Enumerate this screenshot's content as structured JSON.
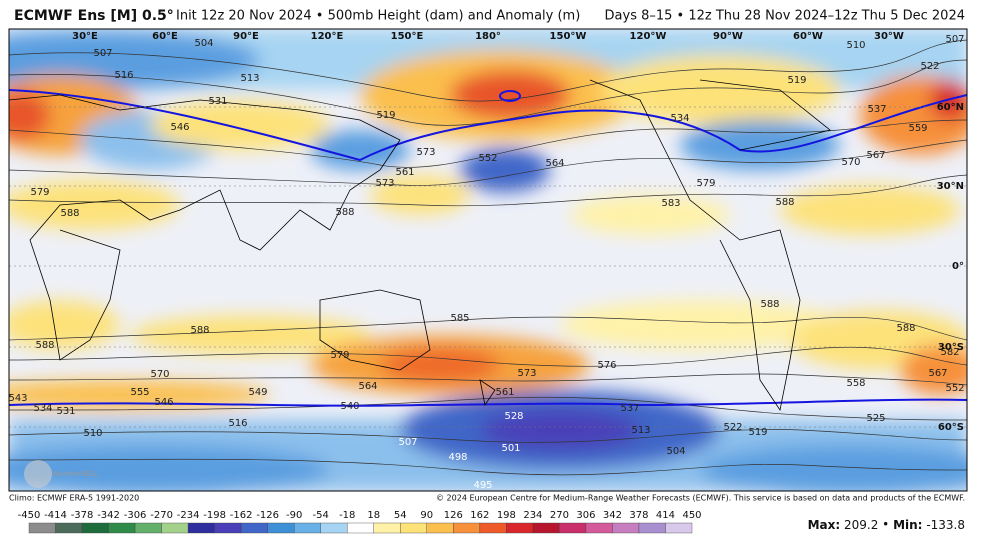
{
  "header": {
    "title": "ECMWF Ens [M] 0.5°",
    "init": "Init 12z 20 Nov 2024 • 500mb Height (dam) and Anomaly (m)",
    "valid": "Days 8–15 • 12z Thu 28 Nov 2024–12z Thu 5 Dec 2024"
  },
  "map": {
    "lon_labels": [
      "30°E",
      "60°E",
      "90°E",
      "120°E",
      "150°E",
      "180°",
      "150°W",
      "120°W",
      "90°W",
      "60°W",
      "30°W"
    ],
    "lat_labels": [
      "60°N",
      "30°N",
      "0°",
      "30°S",
      "60°S"
    ],
    "contour_labels": [
      "507",
      "504",
      "516",
      "513",
      "531",
      "546",
      "519",
      "552",
      "564",
      "573",
      "561",
      "573",
      "579",
      "588",
      "588",
      "585",
      "588",
      "588",
      "579",
      "570",
      "564",
      "555",
      "549",
      "546",
      "543",
      "534",
      "531",
      "516",
      "510",
      "540",
      "561",
      "573",
      "576",
      "528",
      "537",
      "513",
      "507",
      "501",
      "498",
      "495",
      "504",
      "522",
      "519",
      "525",
      "558",
      "567",
      "552",
      "582",
      "588",
      "588",
      "588",
      "570",
      "567",
      "537",
      "519",
      "510",
      "522",
      "507",
      "559",
      "534",
      "579",
      "583"
    ],
    "watermark": "WeatherBELL"
  },
  "footer": {
    "climo": "Climo: ECMWF ERA-5 1991-2020",
    "copyright": "© 2024 European Centre for Medium-Range Weather Forecasts (ECMWF). This service is based on data and products of the ECMWF."
  },
  "colorbar": {
    "ticks": [
      "-450",
      "-414",
      "-378",
      "-342",
      "-306",
      "-270",
      "-234",
      "-198",
      "-162",
      "-126",
      "-90",
      "-54",
      "-18",
      "18",
      "54",
      "90",
      "126",
      "162",
      "198",
      "234",
      "270",
      "306",
      "342",
      "378",
      "414",
      "450"
    ],
    "colors": [
      "#8c8c8c",
      "#4d6b5a",
      "#1e6b3c",
      "#2e8b4a",
      "#62b06a",
      "#a3d18c",
      "#2e2e9e",
      "#4a3fb8",
      "#3f66c8",
      "#3e8fd8",
      "#68b0e8",
      "#a6d4f2",
      "#ffffff",
      "#fff2a8",
      "#fde27a",
      "#fbbf4e",
      "#f6903a",
      "#ee5a2a",
      "#d9262a",
      "#b8152e",
      "#c92f6a",
      "#d45a9a",
      "#c77ec0",
      "#a88fd0",
      "#d8c8ec"
    ]
  },
  "stats": {
    "max_label": "Max",
    "max": "209.2",
    "min_label": "Min",
    "min": "-133.8"
  }
}
